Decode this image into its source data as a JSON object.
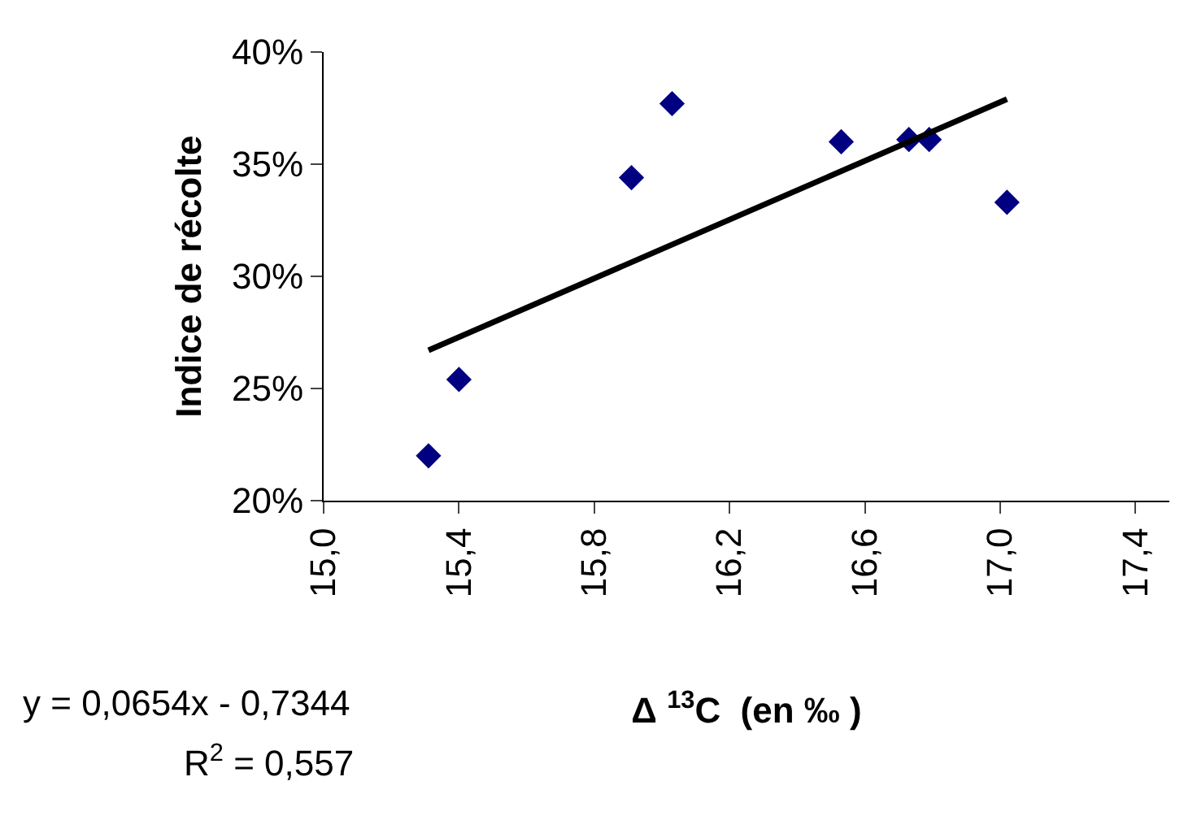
{
  "chart_data": {
    "type": "scatter",
    "xlabel": "Δ $^{13}$C  (en ‰ )",
    "ylabel": "Indice de récolte",
    "series": [
      {
        "color": "#000080",
        "marker": "diamond",
        "x": [
          15.31,
          15.4,
          15.91,
          16.03,
          16.53,
          16.73,
          16.79,
          17.02
        ],
        "values": [
          22.0,
          25.4,
          34.4,
          37.7,
          36.0,
          36.1,
          36.1,
          33.3
        ]
      },
      {
        "type": "line",
        "color": "#000000",
        "marker": "none",
        "line_style": "solid",
        "x": [
          15.31,
          17.02
        ],
        "values": [
          26.7,
          37.9
        ]
      }
    ],
    "xlim": [
      15.0,
      17.5
    ],
    "xticks": [
      {
        "value": 15.0,
        "label": "15,0"
      },
      {
        "value": 15.4,
        "label": "15,4"
      },
      {
        "value": 15.8,
        "label": "15,8"
      },
      {
        "value": 16.2,
        "label": "16,2"
      },
      {
        "value": 16.6,
        "label": "16,6"
      },
      {
        "value": 17.0,
        "label": "17,0"
      },
      {
        "value": 17.4,
        "label": "17,4"
      }
    ],
    "ylim": [
      20,
      40
    ],
    "yticks": [
      {
        "value": 20,
        "label": "20%"
      },
      {
        "value": 25,
        "label": "25%"
      },
      {
        "value": 30,
        "label": "30%"
      },
      {
        "value": 35,
        "label": "35%"
      },
      {
        "value": 40,
        "label": "40%"
      }
    ],
    "annotations": [
      "y = 0,0654x - 0,7344",
      "R$^{2}$ = 0,557"
    ],
    "grid": false
  }
}
